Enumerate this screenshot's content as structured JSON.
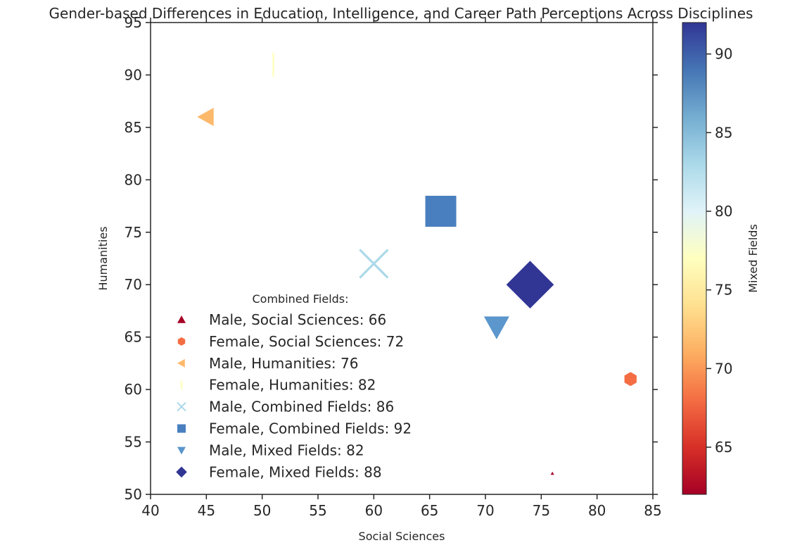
{
  "chart_data": {
    "type": "scatter",
    "title": "Gender-based Differences in Education, Intelligence, and Career Path Perceptions Across Disciplines",
    "xlabel": "Social Sciences",
    "ylabel": "Humanities",
    "xlim": [
      40,
      85
    ],
    "ylim": [
      50,
      95
    ],
    "xticks": [
      "40",
      "45",
      "50",
      "55",
      "60",
      "65",
      "70",
      "75",
      "80",
      "85"
    ],
    "yticks": [
      "50",
      "55",
      "60",
      "65",
      "70",
      "75",
      "80",
      "85",
      "90",
      "95"
    ],
    "grid": false,
    "legend": {
      "title": "Combined Fields:",
      "placement": "lower-left"
    },
    "colorbar": {
      "label": "Mixed Fields",
      "range": [
        62,
        92
      ],
      "ticks": [
        "65",
        "70",
        "75",
        "80",
        "85",
        "90"
      ],
      "colormap": "RdYlBu"
    },
    "points": [
      {
        "label": "Male, Social Sciences: 66",
        "x": 76,
        "y": 52,
        "combined": 66,
        "mixed": 62,
        "marker": "triangle-up",
        "color": "#a50026"
      },
      {
        "label": "Female, Social Sciences: 72",
        "x": 83,
        "y": 61,
        "combined": 72,
        "mixed": 69,
        "marker": "hexagon",
        "color": "#f46d43"
      },
      {
        "label": "Male, Humanities: 76",
        "x": 45,
        "y": 86,
        "combined": 76,
        "mixed": 73,
        "marker": "triangle-left",
        "color": "#fdb96b"
      },
      {
        "label": "Female, Humanities: 82",
        "x": 51,
        "y": 91,
        "combined": 82,
        "mixed": 77,
        "marker": "vline",
        "color": "#ffffbf"
      },
      {
        "label": "Male, Combined Fields: 86",
        "x": 60,
        "y": 72,
        "combined": 86,
        "mixed": 82,
        "marker": "x",
        "color": "#abd9e9"
      },
      {
        "label": "Female, Combined Fields: 92",
        "x": 66,
        "y": 77,
        "combined": 92,
        "mixed": 89,
        "marker": "square",
        "color": "#4a7fbf"
      },
      {
        "label": "Male, Mixed Fields: 82",
        "x": 71,
        "y": 66,
        "combined": 82,
        "mixed": 87,
        "marker": "triangle-down",
        "color": "#5b96cc"
      },
      {
        "label": "Female, Mixed Fields: 88",
        "x": 74,
        "y": 70,
        "combined": 88,
        "mixed": 92,
        "marker": "diamond",
        "color": "#313695"
      }
    ]
  }
}
